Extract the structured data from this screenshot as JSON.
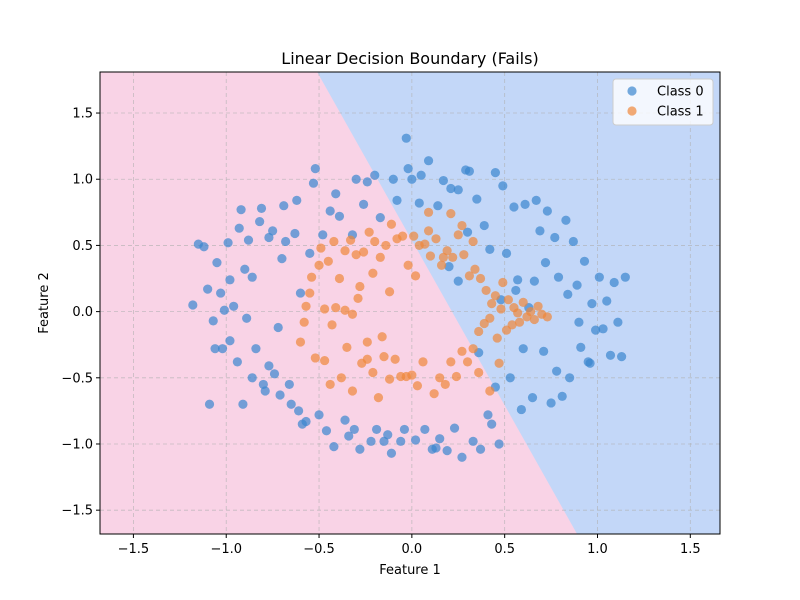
{
  "chart_data": {
    "type": "scatter",
    "title": "Linear Decision Boundary (Fails)",
    "xlabel": "Feature 1",
    "ylabel": "Feature 2",
    "xlim": [
      -1.68,
      1.66
    ],
    "ylim": [
      -1.68,
      1.81
    ],
    "xticks": [
      -1.5,
      -1.0,
      -0.5,
      0.0,
      0.5,
      1.0,
      1.5
    ],
    "yticks": [
      -1.5,
      -1.0,
      -0.5,
      0.0,
      0.5,
      1.0,
      1.5
    ],
    "xtick_labels": [
      "−1.5",
      "−1.0",
      "−0.5",
      "0.0",
      "0.5",
      "1.0",
      "1.5"
    ],
    "ytick_labels": [
      "−1.5",
      "−1.0",
      "−0.5",
      "0.0",
      "0.5",
      "1.0",
      "1.5"
    ],
    "grid": true,
    "legend_position": "top-right",
    "decision_boundary": {
      "points": [
        [
          -0.51,
          1.81
        ],
        [
          0.89,
          -1.68
        ]
      ],
      "region_colors": {
        "upper_right": "#c3d7f8",
        "lower_left": "#f9d3e6"
      }
    },
    "series": [
      {
        "name": "Class 0",
        "color": "#3a86cf",
        "points": [
          [
            -1.18,
            0.05
          ],
          [
            -1.12,
            0.49
          ],
          [
            -1.15,
            0.51
          ],
          [
            -1.1,
            0.17
          ],
          [
            -1.07,
            -0.07
          ],
          [
            -1.05,
            0.37
          ],
          [
            -1.06,
            -0.28
          ],
          [
            -1.02,
            -0.28
          ],
          [
            -1.09,
            -0.7
          ],
          [
            -1.03,
            0.14
          ],
          [
            -1.01,
            0.01
          ],
          [
            -0.99,
            0.52
          ],
          [
            -0.98,
            -0.22
          ],
          [
            -0.96,
            0.04
          ],
          [
            -0.98,
            0.24
          ],
          [
            -0.94,
            -0.38
          ],
          [
            -0.93,
            0.63
          ],
          [
            -0.92,
            0.77
          ],
          [
            -0.91,
            -0.7
          ],
          [
            -0.9,
            0.32
          ],
          [
            -0.89,
            -0.05
          ],
          [
            -0.88,
            0.54
          ],
          [
            -0.86,
            0.26
          ],
          [
            -0.86,
            -0.5
          ],
          [
            -0.84,
            -0.28
          ],
          [
            -0.82,
            0.68
          ],
          [
            -0.81,
            0.78
          ],
          [
            -0.8,
            -0.55
          ],
          [
            -0.79,
            -0.6
          ],
          [
            -0.77,
            -0.41
          ],
          [
            -0.77,
            0.56
          ],
          [
            -0.75,
            0.61
          ],
          [
            -0.74,
            -0.47
          ],
          [
            -0.72,
            -0.12
          ],
          [
            -0.71,
            -0.63
          ],
          [
            -0.7,
            0.4
          ],
          [
            -0.69,
            0.8
          ],
          [
            -0.68,
            0.53
          ],
          [
            -0.66,
            -0.55
          ],
          [
            -0.65,
            -0.7
          ],
          [
            -0.63,
            0.59
          ],
          [
            -0.62,
            0.84
          ],
          [
            -0.61,
            -0.75
          ],
          [
            -0.6,
            0.14
          ],
          [
            -0.59,
            -0.85
          ],
          [
            -0.57,
            -0.83
          ],
          [
            -0.55,
            0.44
          ],
          [
            -0.53,
            0.97
          ],
          [
            -0.52,
            1.08
          ],
          [
            -0.5,
            -0.78
          ],
          [
            -0.48,
            0.58
          ],
          [
            -0.46,
            -0.9
          ],
          [
            -0.44,
            0.76
          ],
          [
            -0.42,
            -1.02
          ],
          [
            -0.41,
            0.89
          ],
          [
            -0.39,
            0.72
          ],
          [
            -0.36,
            -0.82
          ],
          [
            -0.34,
            -0.94
          ],
          [
            -0.32,
            0.58
          ],
          [
            -0.31,
            -0.89
          ],
          [
            -0.3,
            1.0
          ],
          [
            -0.28,
            -1.04
          ],
          [
            -0.26,
            0.81
          ],
          [
            -0.24,
            0.98
          ],
          [
            -0.22,
            -0.98
          ],
          [
            -0.2,
            1.03
          ],
          [
            -0.19,
            -0.89
          ],
          [
            -0.17,
            0.71
          ],
          [
            -0.15,
            -0.98
          ],
          [
            -0.13,
            -0.93
          ],
          [
            -0.11,
            -1.07
          ],
          [
            -0.1,
            1.0
          ],
          [
            -0.08,
            0.84
          ],
          [
            -0.06,
            -0.98
          ],
          [
            -0.04,
            -0.89
          ],
          [
            -0.02,
            1.08
          ],
          [
            0.0,
            1.0
          ],
          [
            0.02,
            -0.97
          ],
          [
            0.05,
            1.03
          ],
          [
            0.07,
            -0.89
          ],
          [
            0.09,
            1.14
          ],
          [
            0.11,
            -1.04
          ],
          [
            0.13,
            -1.03
          ],
          [
            0.15,
            -0.96
          ],
          [
            0.17,
            0.99
          ],
          [
            0.19,
            -1.05
          ],
          [
            0.21,
            0.93
          ],
          [
            0.23,
            -0.88
          ],
          [
            0.25,
            0.92
          ],
          [
            0.27,
            -1.1
          ],
          [
            0.29,
            1.07
          ],
          [
            0.31,
            1.06
          ],
          [
            0.33,
            -0.98
          ],
          [
            0.35,
            0.85
          ],
          [
            0.37,
            -1.04
          ],
          [
            0.39,
            0.65
          ],
          [
            0.41,
            -0.78
          ],
          [
            0.43,
            -0.85
          ],
          [
            0.45,
            1.05
          ],
          [
            0.47,
            -1.0
          ],
          [
            0.49,
            0.95
          ],
          [
            0.51,
            0.44
          ],
          [
            0.53,
            -0.5
          ],
          [
            0.55,
            0.79
          ],
          [
            0.57,
            0.24
          ],
          [
            0.59,
            -0.74
          ],
          [
            0.61,
            0.81
          ],
          [
            0.63,
            0.03
          ],
          [
            0.65,
            -0.65
          ],
          [
            0.67,
            0.84
          ],
          [
            0.69,
            0.61
          ],
          [
            0.71,
            -0.3
          ],
          [
            0.73,
            0.76
          ],
          [
            0.75,
            -0.69
          ],
          [
            0.77,
            0.56
          ],
          [
            0.79,
            0.26
          ],
          [
            0.81,
            -0.64
          ],
          [
            0.83,
            0.69
          ],
          [
            0.85,
            -0.5
          ],
          [
            0.87,
            0.53
          ],
          [
            0.89,
            0.2
          ],
          [
            0.91,
            -0.27
          ],
          [
            0.93,
            0.38
          ],
          [
            0.95,
            -0.38
          ],
          [
            0.97,
            0.06
          ],
          [
            0.99,
            -0.14
          ],
          [
            1.01,
            0.26
          ],
          [
            1.03,
            -0.13
          ],
          [
            1.05,
            0.08
          ],
          [
            1.07,
            -0.33
          ],
          [
            1.09,
            0.22
          ],
          [
            1.11,
            -0.08
          ],
          [
            1.13,
            -0.34
          ],
          [
            1.15,
            0.26
          ],
          [
            0.96,
            -0.39
          ],
          [
            0.9,
            -0.08
          ],
          [
            0.84,
            0.13
          ],
          [
            0.78,
            -0.45
          ],
          [
            0.72,
            0.37
          ],
          [
            0.66,
            0.23
          ],
          [
            0.6,
            -0.28
          ],
          [
            0.56,
            0.16
          ],
          [
            0.48,
            0.09
          ],
          [
            0.45,
            -0.57
          ],
          [
            0.42,
            0.47
          ],
          [
            0.36,
            -0.31
          ],
          [
            0.3,
            0.6
          ],
          [
            0.25,
            0.23
          ],
          [
            0.2,
            0.34
          ],
          [
            0.14,
            0.8
          ],
          [
            0.04,
            0.82
          ],
          [
            -0.03,
            1.31
          ]
        ]
      },
      {
        "name": "Class 1",
        "color": "#f0883a",
        "points": [
          [
            -0.6,
            -0.23
          ],
          [
            -0.58,
            -0.08
          ],
          [
            -0.57,
            0.04
          ],
          [
            -0.55,
            0.14
          ],
          [
            -0.54,
            0.26
          ],
          [
            -0.52,
            -0.35
          ],
          [
            -0.5,
            0.35
          ],
          [
            -0.49,
            0.48
          ],
          [
            -0.47,
            -0.37
          ],
          [
            -0.45,
            0.38
          ],
          [
            -0.44,
            -0.55
          ],
          [
            -0.42,
            0.53
          ],
          [
            -0.41,
            0.03
          ],
          [
            -0.39,
            0.25
          ],
          [
            -0.38,
            -0.5
          ],
          [
            -0.36,
            0.46
          ],
          [
            -0.35,
            -0.27
          ],
          [
            -0.33,
            0.54
          ],
          [
            -0.32,
            -0.6
          ],
          [
            -0.3,
            0.43
          ],
          [
            -0.29,
            0.1
          ],
          [
            -0.27,
            -0.39
          ],
          [
            -0.26,
            0.45
          ],
          [
            -0.24,
            -0.36
          ],
          [
            -0.23,
            0.6
          ],
          [
            -0.21,
            -0.46
          ],
          [
            -0.2,
            0.53
          ],
          [
            -0.18,
            -0.65
          ],
          [
            -0.17,
            0.41
          ],
          [
            -0.15,
            -0.34
          ],
          [
            -0.14,
            0.5
          ],
          [
            -0.12,
            -0.51
          ],
          [
            -0.11,
            0.66
          ],
          [
            -0.09,
            -0.36
          ],
          [
            -0.08,
            0.55
          ],
          [
            -0.06,
            -0.49
          ],
          [
            -0.05,
            0.57
          ],
          [
            -0.03,
            -0.49
          ],
          [
            -0.02,
            0.35
          ],
          [
            0.0,
            -0.48
          ],
          [
            0.01,
            0.57
          ],
          [
            0.03,
            -0.56
          ],
          [
            0.04,
            0.5
          ],
          [
            0.06,
            -0.38
          ],
          [
            0.07,
            0.51
          ],
          [
            0.09,
            0.61
          ],
          [
            0.1,
            0.42
          ],
          [
            0.12,
            -0.62
          ],
          [
            0.13,
            0.55
          ],
          [
            0.15,
            -0.5
          ],
          [
            0.16,
            0.35
          ],
          [
            0.18,
            -0.55
          ],
          [
            0.19,
            0.46
          ],
          [
            0.21,
            -0.38
          ],
          [
            0.22,
            0.41
          ],
          [
            0.24,
            -0.49
          ],
          [
            0.25,
            0.58
          ],
          [
            0.27,
            -0.3
          ],
          [
            0.28,
            0.43
          ],
          [
            0.3,
            -0.38
          ],
          [
            0.31,
            0.27
          ],
          [
            0.33,
            -0.28
          ],
          [
            0.34,
            0.32
          ],
          [
            0.36,
            -0.15
          ],
          [
            0.37,
            0.25
          ],
          [
            0.39,
            -0.09
          ],
          [
            0.4,
            0.16
          ],
          [
            0.42,
            -0.05
          ],
          [
            0.43,
            0.06
          ],
          [
            0.45,
            0.12
          ],
          [
            0.46,
            -0.2
          ],
          [
            0.48,
            0.02
          ],
          [
            0.49,
            0.22
          ],
          [
            0.51,
            -0.14
          ],
          [
            0.52,
            0.09
          ],
          [
            0.54,
            -0.1
          ],
          [
            0.55,
            0.03
          ],
          [
            0.57,
            -0.01
          ],
          [
            0.58,
            -0.08
          ],
          [
            0.6,
            0.07
          ],
          [
            0.62,
            -0.04
          ],
          [
            0.64,
            0.0
          ],
          [
            0.66,
            -0.06
          ],
          [
            0.68,
            0.04
          ],
          [
            0.7,
            -0.02
          ],
          [
            0.73,
            -0.04
          ],
          [
            0.21,
            0.74
          ],
          [
            0.09,
            0.75
          ],
          [
            0.27,
            0.65
          ],
          [
            -0.47,
            0.02
          ],
          [
            -0.43,
            -0.1
          ],
          [
            -0.36,
            0.01
          ],
          [
            -0.32,
            -0.02
          ],
          [
            -0.28,
            0.19
          ],
          [
            -0.24,
            -0.23
          ],
          [
            -0.21,
            0.29
          ],
          [
            -0.16,
            -0.19
          ],
          [
            -0.12,
            0.15
          ],
          [
            0.02,
            0.27
          ],
          [
            0.17,
            0.41
          ],
          [
            0.33,
            0.53
          ],
          [
            0.36,
            -0.46
          ],
          [
            0.42,
            -0.6
          ],
          [
            0.47,
            -0.39
          ]
        ]
      }
    ]
  }
}
